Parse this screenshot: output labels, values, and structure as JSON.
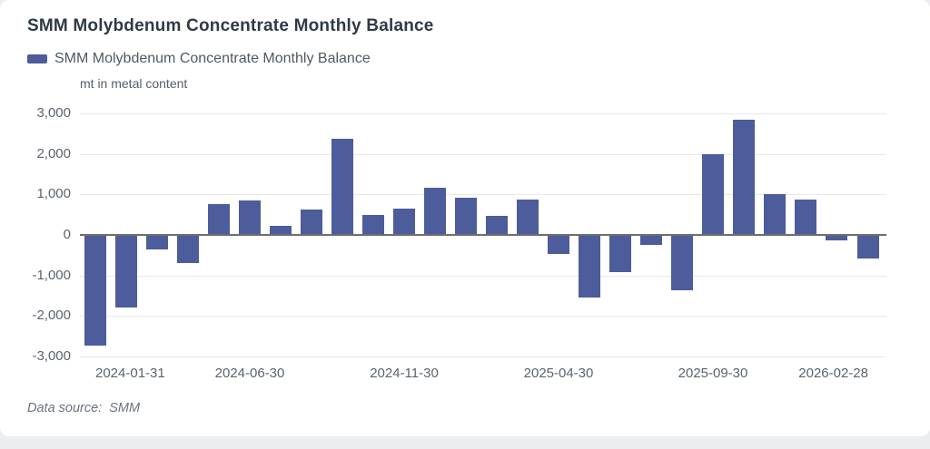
{
  "page": {
    "background": "#ebedf0",
    "card_background": "#ffffff"
  },
  "header": {
    "title": "SMM Molybdenum Concentrate Monthly Balance",
    "legend": {
      "label": "SMM Molybdenum Concentrate Monthly Balance",
      "swatch_color": "#4d5c9b"
    },
    "unit_label": "mt in metal content"
  },
  "footer": {
    "data_source": "Data source:  SMM"
  },
  "chart_data": {
    "type": "bar",
    "title": "SMM Molybdenum Concentrate Monthly Balance",
    "series": [
      {
        "name": "SMM Molybdenum Concentrate Monthly Balance",
        "values": [
          -2730,
          -1800,
          -350,
          -690,
          760,
          860,
          230,
          630,
          2370,
          490,
          650,
          1160,
          920,
          470,
          870,
          -470,
          -1540,
          -910,
          -240,
          -1370,
          2000,
          2850,
          1000,
          880,
          -140,
          -580
        ]
      }
    ],
    "categories": [
      "2024-01-31",
      "2024-02-29",
      "2024-03-31",
      "2024-04-30",
      "2024-05-31",
      "2024-06-30",
      "2024-07-31",
      "2024-08-31",
      "2024-09-30",
      "2024-10-31",
      "2024-11-30",
      "2024-12-31",
      "2025-01-31",
      "2025-02-28",
      "2025-03-31",
      "2025-04-30",
      "2025-05-31",
      "2025-06-30",
      "2025-07-31",
      "2025-08-31",
      "2025-09-30",
      "2025-10-31",
      "2025-11-30",
      "2025-12-31",
      "2026-01-31",
      "2026-02-28"
    ],
    "x_tick_labels": [
      "2024-01-31",
      "2024-06-30",
      "2024-11-30",
      "2025-04-30",
      "2025-09-30",
      "2026-02-28"
    ],
    "x_tick_indices": [
      0,
      5,
      10,
      15,
      20,
      25
    ],
    "ylabel": "mt in metal content",
    "ylim": [
      -3000,
      3000
    ],
    "y_ticks": [
      3000,
      2000,
      1000,
      0,
      -1000,
      -2000,
      -3000
    ],
    "y_tick_labels": [
      "3,000",
      "2,000",
      "1,000",
      "0",
      "-1,000",
      "-2,000",
      "-3,000"
    ],
    "bar_color": "#4d5c9b",
    "grid": true,
    "legend_position": "top-left"
  }
}
